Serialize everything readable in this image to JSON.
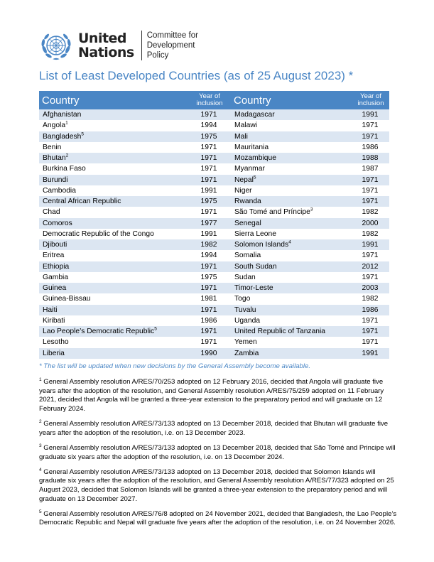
{
  "header": {
    "org_line1": "United",
    "org_line2": "Nations",
    "committee_line1": "Committee for",
    "committee_line2": "Development",
    "committee_line3": "Policy",
    "emblem_icon": "un-emblem-icon",
    "emblem_color": "#4a86c5"
  },
  "title": "List of Least Developed Countries (as of 25 August 2023) *",
  "columns": {
    "country": "Country",
    "year_line1": "Year of",
    "year_line2": "inclusion"
  },
  "left_rows": [
    {
      "name": "Afghanistan",
      "sup": "",
      "year": "1971"
    },
    {
      "name": "Angola",
      "sup": "1",
      "year": "1994"
    },
    {
      "name": "Bangladesh",
      "sup": "5",
      "year": "1975"
    },
    {
      "name": "Benin",
      "sup": "",
      "year": "1971"
    },
    {
      "name": "Bhutan",
      "sup": "2",
      "year": "1971"
    },
    {
      "name": "Burkina Faso",
      "sup": "",
      "year": "1971"
    },
    {
      "name": "Burundi",
      "sup": "",
      "year": "1971"
    },
    {
      "name": "Cambodia",
      "sup": "",
      "year": "1991"
    },
    {
      "name": "Central African Republic",
      "sup": "",
      "year": "1975"
    },
    {
      "name": "Chad",
      "sup": "",
      "year": "1971"
    },
    {
      "name": "Comoros",
      "sup": "",
      "year": "1977"
    },
    {
      "name": "Democratic Republic of the Congo",
      "sup": "",
      "year": "1991"
    },
    {
      "name": "Djibouti",
      "sup": "",
      "year": "1982"
    },
    {
      "name": "Eritrea",
      "sup": "",
      "year": "1994"
    },
    {
      "name": "Ethiopia",
      "sup": "",
      "year": "1971"
    },
    {
      "name": "Gambia",
      "sup": "",
      "year": "1975"
    },
    {
      "name": "Guinea",
      "sup": "",
      "year": "1971"
    },
    {
      "name": "Guinea-Bissau",
      "sup": "",
      "year": "1981"
    },
    {
      "name": "Haiti",
      "sup": "",
      "year": "1971"
    },
    {
      "name": "Kiribati",
      "sup": "",
      "year": "1986"
    },
    {
      "name": "Lao People’s Democratic Republic",
      "sup": "5",
      "year": "1971"
    },
    {
      "name": "Lesotho",
      "sup": "",
      "year": "1971"
    },
    {
      "name": "Liberia",
      "sup": "",
      "year": "1990"
    }
  ],
  "right_rows": [
    {
      "name": "Madagascar",
      "sup": "",
      "year": "1991"
    },
    {
      "name": "Malawi",
      "sup": "",
      "year": "1971"
    },
    {
      "name": "Mali",
      "sup": "",
      "year": "1971"
    },
    {
      "name": "Mauritania",
      "sup": "",
      "year": "1986"
    },
    {
      "name": "Mozambique",
      "sup": "",
      "year": "1988"
    },
    {
      "name": "Myanmar",
      "sup": "",
      "year": "1987"
    },
    {
      "name": "Nepal",
      "sup": "5",
      "year": "1971"
    },
    {
      "name": "Niger",
      "sup": "",
      "year": "1971"
    },
    {
      "name": "Rwanda",
      "sup": "",
      "year": "1971"
    },
    {
      "name": "São Tomé and Príncipe",
      "sup": "3",
      "year": "1982"
    },
    {
      "name": "Senegal",
      "sup": "",
      "year": "2000"
    },
    {
      "name": "Sierra Leone",
      "sup": "",
      "year": "1982"
    },
    {
      "name": "Solomon Islands",
      "sup": "4",
      "year": "1991"
    },
    {
      "name": "Somalia",
      "sup": "",
      "year": "1971"
    },
    {
      "name": "South Sudan",
      "sup": "",
      "year": "2012"
    },
    {
      "name": "Sudan",
      "sup": "",
      "year": "1971"
    },
    {
      "name": "Timor-Leste",
      "sup": "",
      "year": "2003"
    },
    {
      "name": "Togo",
      "sup": "",
      "year": "1982"
    },
    {
      "name": "Tuvalu",
      "sup": "",
      "year": "1986"
    },
    {
      "name": "Uganda",
      "sup": "",
      "year": "1971"
    },
    {
      "name": "United Republic of Tanzania",
      "sup": "",
      "year": "1971"
    },
    {
      "name": "Yemen",
      "sup": "",
      "year": "1971"
    },
    {
      "name": "Zambia",
      "sup": "",
      "year": "1991"
    }
  ],
  "list_note": "* The list will be updated when new decisions by the General Assembly become available.",
  "footnotes": [
    {
      "num": "1",
      "text": "General Assembly resolution A/RES/70/253 adopted on 12 February 2016, decided that Angola will graduate five years after the adoption of the resolution, and General Assembly resolution A/RES/75/259 adopted on 11 February 2021, decided that Angola will be granted a three-year extension to the preparatory period and will graduate on 12 February 2024."
    },
    {
      "num": "2",
      "text": "General Assembly resolution A/RES/73/133 adopted on 13 December 2018, decided that Bhutan will graduate five years after the adoption of the resolution, i.e. on 13 December 2023."
    },
    {
      "num": "3",
      "text": "General Assembly resolution A/RES/73/133 adopted on 13 December 2018, decided that São Tomé and Principe will graduate six years after the adoption of the resolution, i.e. on 13 December 2024."
    },
    {
      "num": "4",
      "text": "General Assembly resolution A/RES/73/133 adopted on 13 December 2018, decided that Solomon Islands will graduate six years after the adoption of the resolution, and General Assembly resolution A/RES/77/323 adopted on 25 August 2023, decided that Solomon Islands will be granted a three-year extension to the preparatory period and will graduate on 13 December 2027."
    },
    {
      "num": "5",
      "text": "General Assembly resolution A/RES/76/8 adopted on 24 November 2021, decided that Bangladesh, the Lao People’s Democratic Republic and Nepal will graduate five years after the adoption of the resolution, i.e. on 24 November 2026."
    }
  ]
}
